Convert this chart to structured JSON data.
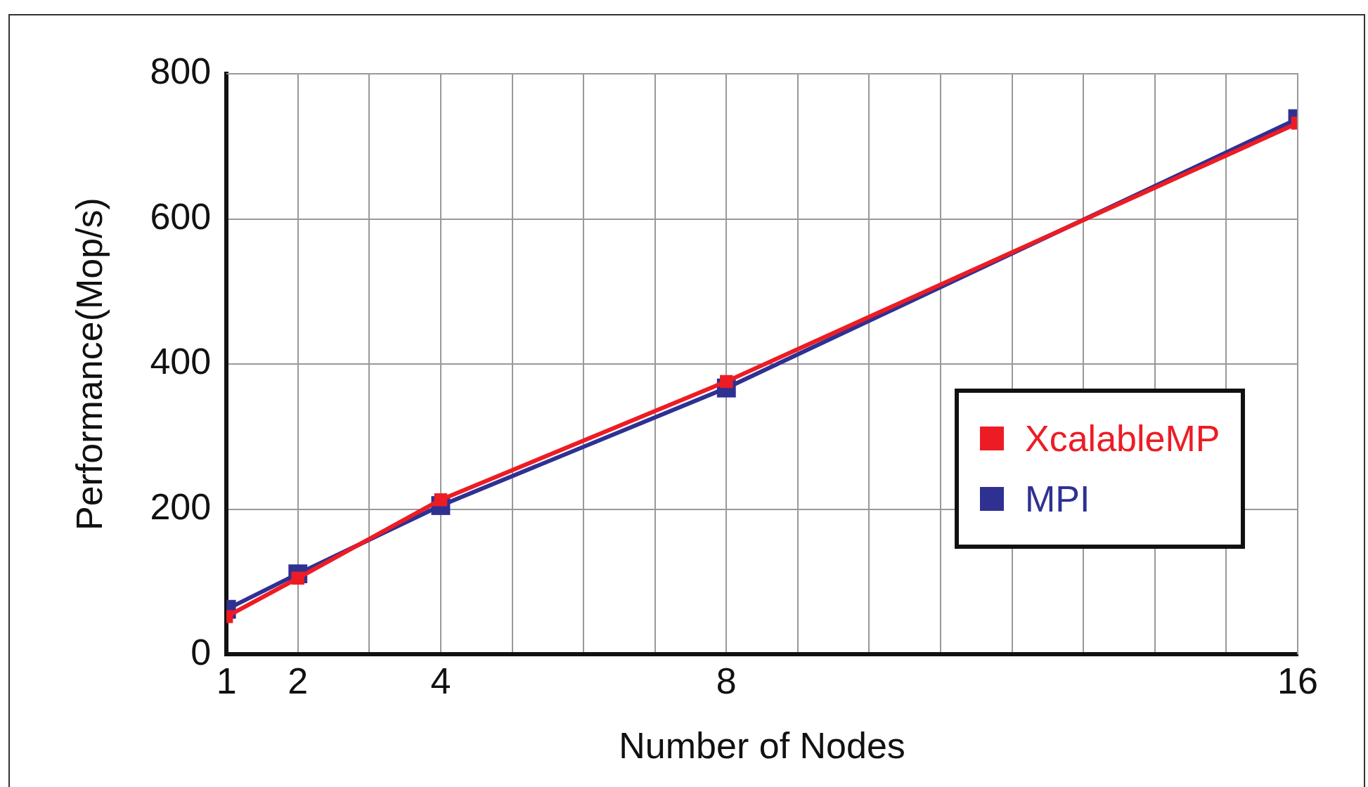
{
  "chart_data": {
    "type": "line",
    "xlabel": "Number of Nodes",
    "ylabel": "Performance(Mop/s)",
    "x": [
      1,
      2,
      4,
      8,
      16
    ],
    "series": [
      {
        "name": "MPI",
        "color": "#2e3192",
        "values": [
          62,
          111,
          205,
          367,
          738
        ]
      },
      {
        "name": "XcalableMP",
        "color": "#ed1c24",
        "values": [
          52,
          105,
          213,
          376,
          732
        ]
      }
    ],
    "xlim": [
      1,
      16
    ],
    "xticks": [
      1,
      2,
      {
        "value": 3,
        "label": null
      },
      4,
      {
        "value": 5,
        "label": null
      },
      {
        "value": 6,
        "label": null
      },
      {
        "value": 7,
        "label": null
      },
      8,
      {
        "value": 9,
        "label": null
      },
      {
        "value": 10,
        "label": null
      },
      {
        "value": 11,
        "label": null
      },
      {
        "value": 12,
        "label": null
      },
      {
        "value": 13,
        "label": null
      },
      {
        "value": 14,
        "label": null
      },
      {
        "value": 15,
        "label": null
      },
      16
    ],
    "ylim": [
      0,
      800
    ],
    "yticks": [
      0,
      200,
      400,
      600,
      800
    ],
    "grid": true,
    "legend": "bottom right",
    "marker": "square",
    "line_style": "solid"
  }
}
